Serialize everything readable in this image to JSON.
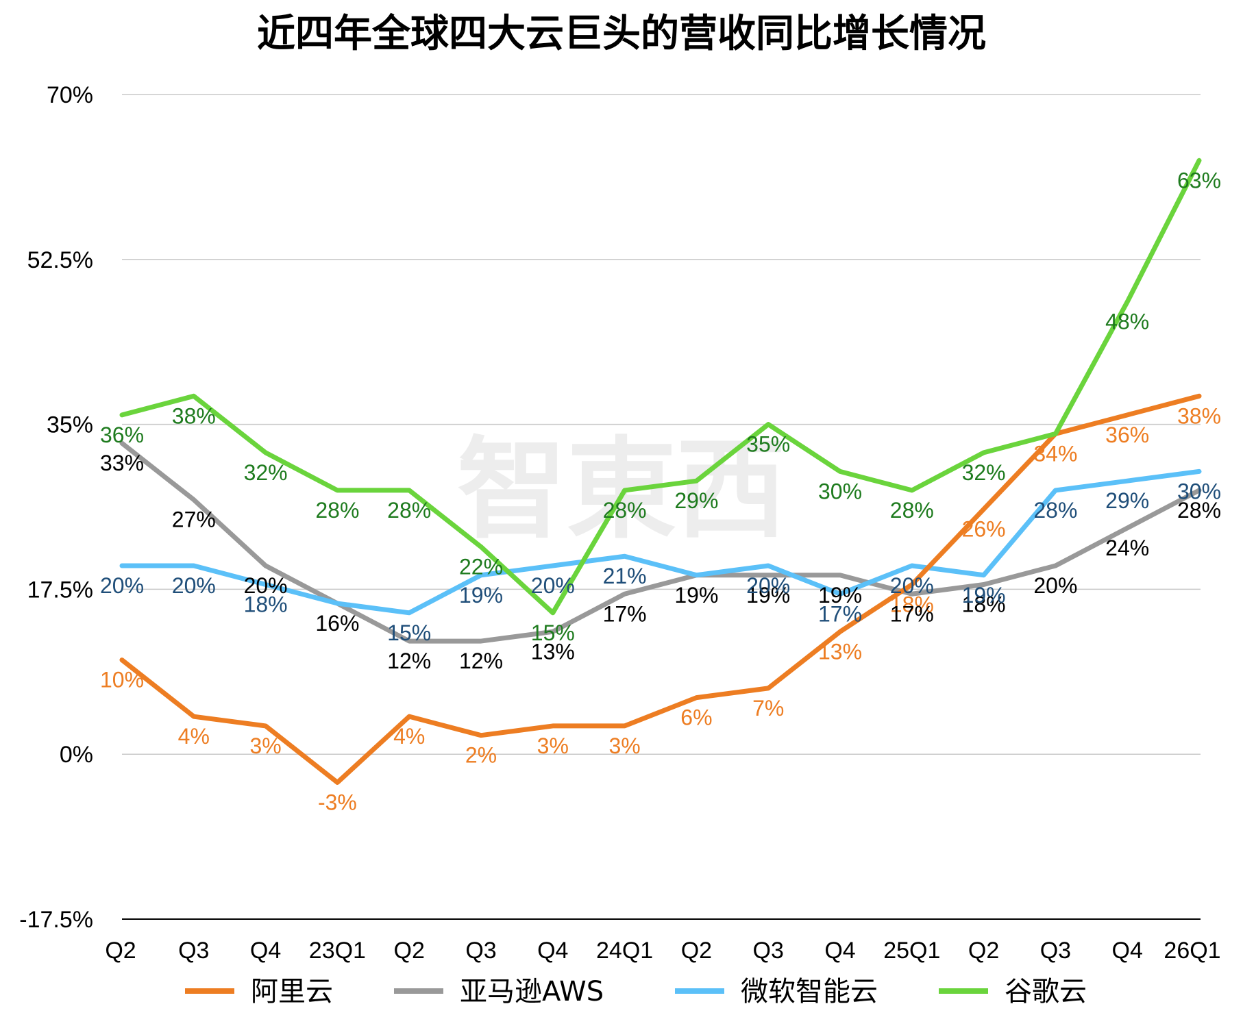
{
  "chart_data": {
    "type": "line",
    "title": "近四年全球四大云巨头的营收同比增长情况",
    "watermark": "智東西",
    "categories": [
      "Q2",
      "Q3",
      "Q4",
      "23Q1",
      "Q2",
      "Q3",
      "Q4",
      "24Q1",
      "Q2",
      "Q3",
      "Q4",
      "25Q1",
      "Q2",
      "Q3",
      "Q4",
      "26Q1"
    ],
    "yticks": [
      "70%",
      "52.5%",
      "35%",
      "17.5%",
      "0%",
      "-17.5%"
    ],
    "ylim": [
      -17.5,
      70
    ],
    "grid": true,
    "legend_position": "bottom",
    "series": [
      {
        "name": "阿里云",
        "color": "#ED7D22",
        "label_color": "#ED7D22",
        "values": [
          10,
          4,
          3,
          -3,
          4,
          2,
          3,
          3,
          6,
          7,
          13,
          18,
          26,
          34,
          36,
          38
        ],
        "labels": [
          "10%",
          "4%",
          "3%",
          "-3%",
          "4%",
          "2%",
          "3%",
          "3%",
          "6%",
          "7%",
          "13%",
          "18%",
          "26%",
          "34%",
          "36%",
          "38%"
        ]
      },
      {
        "name": "亚马逊AWS",
        "color": "#999999",
        "label_color": "#000000",
        "values": [
          33,
          27,
          20,
          16,
          12,
          12,
          13,
          17,
          19,
          19,
          19,
          17,
          18,
          20,
          24,
          28
        ],
        "labels": [
          "33%",
          "27%",
          "20%",
          "16%",
          "12%",
          "12%",
          "13%",
          "17%",
          "19%",
          "19%",
          "19%",
          "17%",
          "18%",
          "20%",
          "24%",
          "28%"
        ]
      },
      {
        "name": "微软智能云",
        "color": "#5BC0F8",
        "label_color": "#1F4E79",
        "values": [
          20,
          20,
          18,
          16,
          15,
          19,
          20,
          21,
          19,
          20,
          17,
          20,
          19,
          28,
          29,
          30
        ],
        "labels": [
          "20%",
          "20%",
          "18%",
          "",
          "15%",
          "19%",
          "20%",
          "21%",
          "",
          "20%",
          "17%",
          "20%",
          "19%",
          "28%",
          "29%",
          "30%"
        ]
      },
      {
        "name": "谷歌云",
        "color": "#6AD43C",
        "label_color": "#1E7B1E",
        "values": [
          36,
          38,
          32,
          28,
          28,
          22,
          15,
          28,
          29,
          35,
          30,
          28,
          32,
          34,
          48,
          63
        ],
        "labels": [
          "36%",
          "38%",
          "32%",
          "28%",
          "28%",
          "22%",
          "15%",
          "28%",
          "29%",
          "35%",
          "30%",
          "28%",
          "32%",
          "",
          "48%",
          "63%"
        ]
      }
    ]
  }
}
